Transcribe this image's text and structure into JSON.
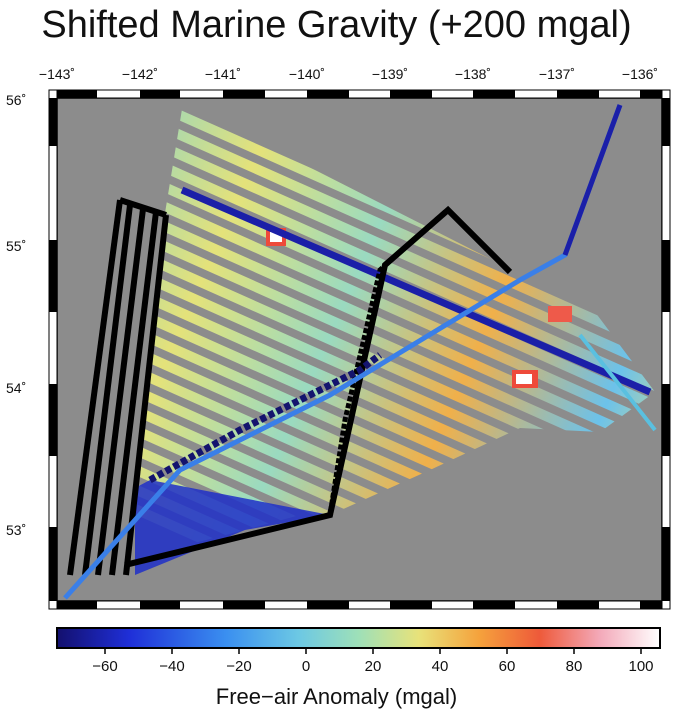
{
  "title": "Shifted Marine Gravity (+200 mgal)",
  "lon_ticks": [
    "−143˚",
    "−142˚",
    "−141˚",
    "−140˚",
    "−139˚",
    "−138˚",
    "−137˚",
    "−136˚"
  ],
  "lat_ticks": [
    "56˚",
    "55˚",
    "54˚",
    "53˚"
  ],
  "colorbar": {
    "labels": [
      "−60",
      "−40",
      "−20",
      "0",
      "20",
      "40",
      "60",
      "80",
      "100"
    ],
    "values": [
      -60,
      -40,
      -20,
      0,
      20,
      40,
      60,
      80,
      100
    ],
    "range": [
      -75,
      105
    ],
    "title": "Free−air Anomaly (mgal)"
  },
  "map": {
    "lon_range": [
      -143.2,
      -135.9
    ],
    "lat_range": [
      52.55,
      56.05
    ],
    "background": "#8c8c8c",
    "track_color": "#000000"
  }
}
